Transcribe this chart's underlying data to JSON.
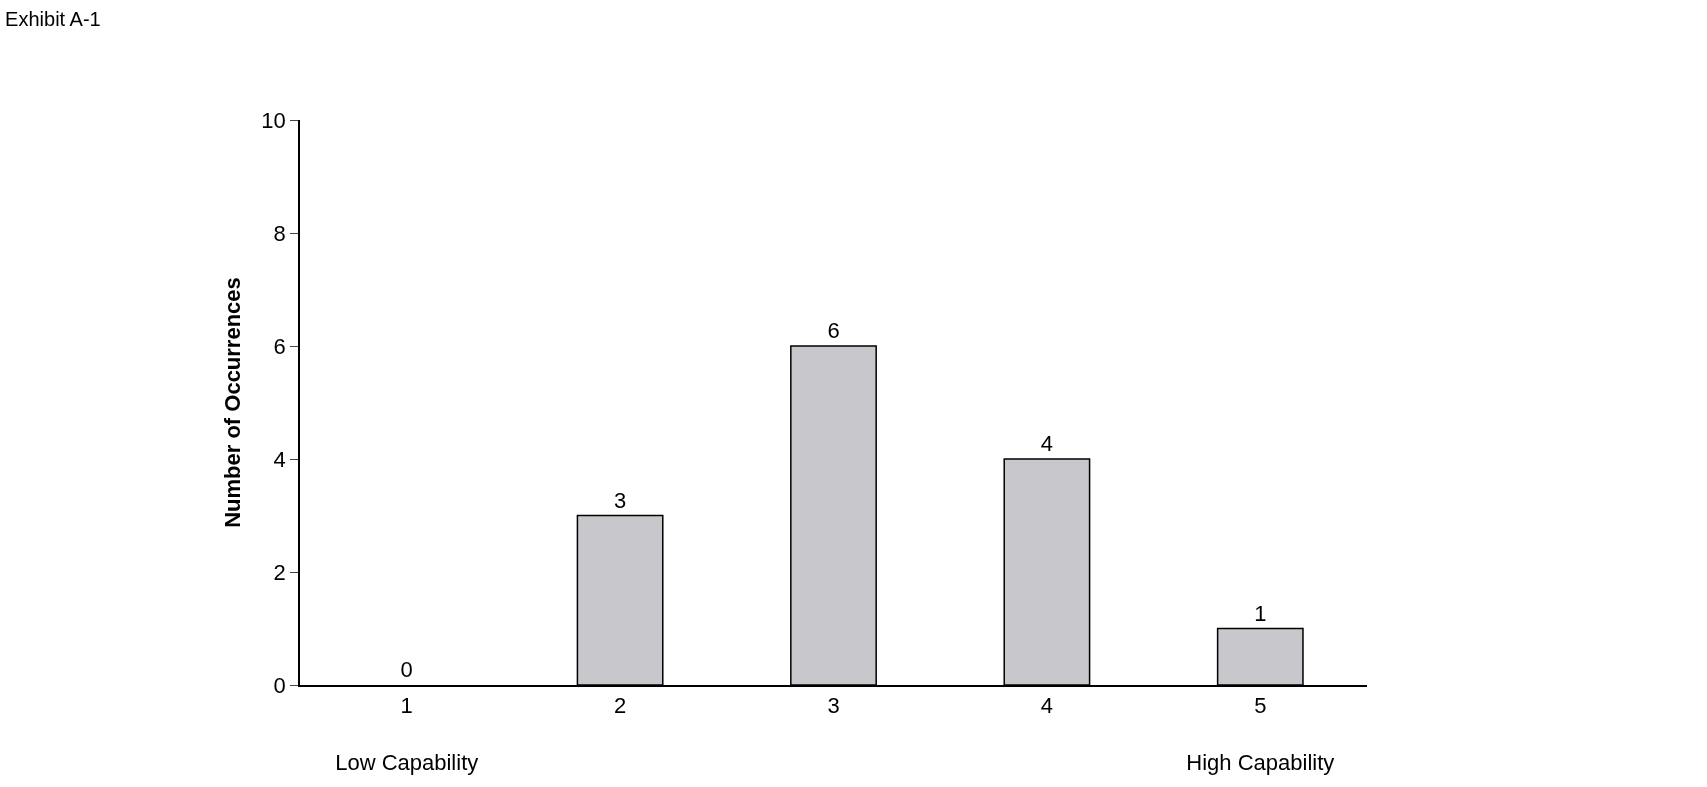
{
  "chart_data": {
    "type": "bar",
    "title": "Exhibit A-1",
    "ylabel": "Number of Occurrences",
    "categories": [
      "1\nLow Capability",
      "2",
      "3",
      "4",
      "5\nHigh Capability"
    ],
    "values": [
      0,
      3,
      6,
      4,
      1
    ],
    "color": "#c8c8cc",
    "ylim": [
      0,
      10
    ],
    "yticks": [
      0,
      2,
      4,
      6,
      8,
      10
    ],
    "data_labels": true,
    "legend": false
  }
}
